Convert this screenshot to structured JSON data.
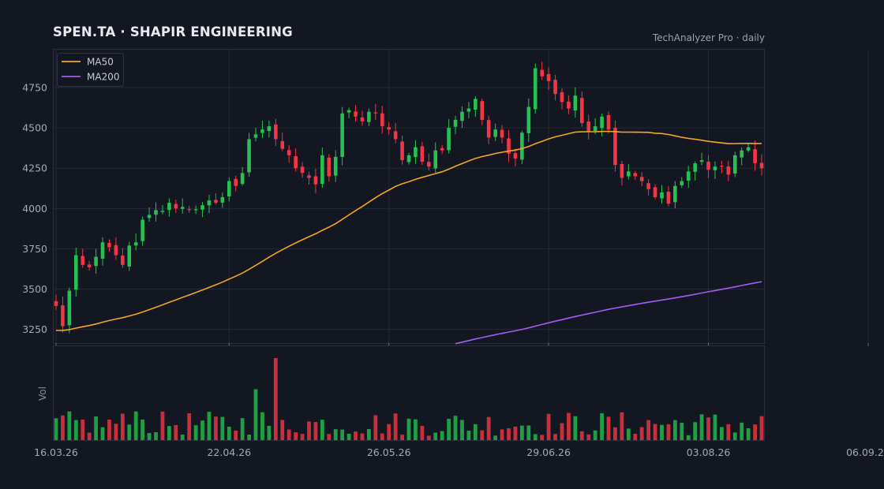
{
  "header": {
    "title": "SPEN.TA  ·  SHAPIR ENGINEERING",
    "source": "TechAnalyzer Pro · daily"
  },
  "colors": {
    "background": "#131722",
    "up": "#26c152",
    "down": "#f23645",
    "ma50": "#f5a623",
    "ma200": "#a25cf2",
    "grid": "#232836"
  },
  "chart_data": {
    "type": "candlestick",
    "ylim": [
      3160,
      4990
    ],
    "y_ticks": [
      3250,
      3500,
      3750,
      4000,
      4250,
      4500,
      4750
    ],
    "x_ticks": [
      "16.03.26",
      "22.04.26",
      "26.05.26",
      "29.06.26",
      "03.08.26",
      "06.09.26"
    ],
    "x_tick_index": [
      0,
      26,
      50,
      74,
      98,
      122
    ],
    "grid": true,
    "legend": {
      "placement": "top-left",
      "entries": [
        "MA50",
        "MA200"
      ]
    },
    "volume_panel_label": "Vol",
    "closes": [
      3395,
      3270,
      3490,
      3710,
      3650,
      3635,
      3700,
      3790,
      3760,
      3710,
      3650,
      3770,
      3790,
      3930,
      3960,
      3990,
      3985,
      4035,
      4000,
      4010,
      3990,
      3995,
      4020,
      4050,
      4035,
      4070,
      4170,
      4140,
      4220,
      4430,
      4460,
      4490,
      4510,
      4430,
      4370,
      4330,
      4250,
      4220,
      4190,
      4150,
      4330,
      4200,
      4320,
      4590,
      4610,
      4570,
      4540,
      4600,
      4590,
      4510,
      4490,
      4430,
      4300,
      4330,
      4380,
      4290,
      4260,
      4360,
      4360,
      4500,
      4550,
      4600,
      4620,
      4680,
      4550,
      4440,
      4490,
      4440,
      4340,
      4310,
      4470,
      4630,
      4870,
      4820,
      4790,
      4710,
      4660,
      4620,
      4700,
      4530,
      4480,
      4510,
      4570,
      4490,
      4270,
      4190,
      4230,
      4200,
      4170,
      4120,
      4070,
      4100,
      4030,
      4140,
      4170,
      4230,
      4280,
      4300,
      4240,
      4260,
      4260,
      4210,
      4330,
      4360,
      4380,
      4280,
      4250
    ]
  }
}
